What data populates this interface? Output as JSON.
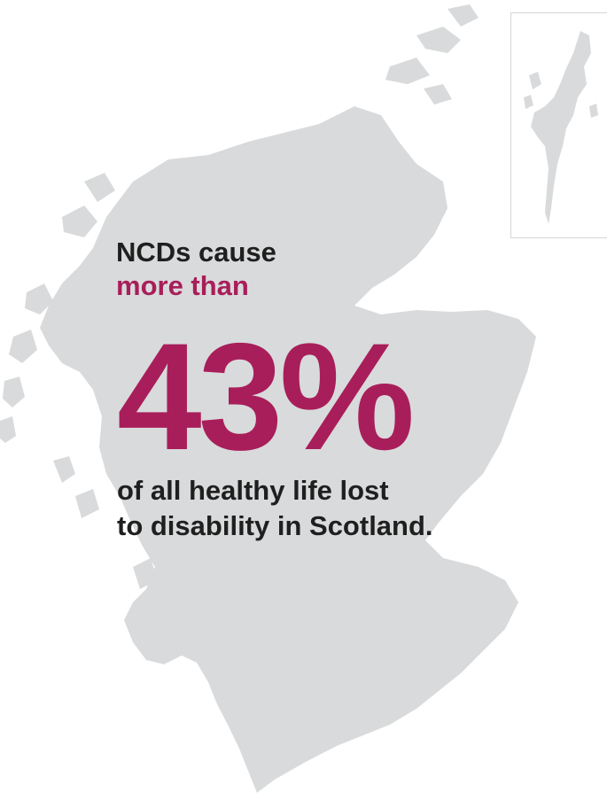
{
  "colors": {
    "accent": "#a81e5a",
    "text_dark": "#1f1f1f",
    "map_fill": "#d9dadb",
    "inset_border": "#d6d6d6"
  },
  "map": {
    "icon": "scotland-map-silhouette",
    "inset_icon": "shetland-islands-inset"
  },
  "headline": {
    "line1": "NCDs cause",
    "line2": "more than"
  },
  "stat": {
    "value": "43%"
  },
  "caption": {
    "line1": "of all healthy life lost",
    "line2": "to disability in Scotland."
  }
}
